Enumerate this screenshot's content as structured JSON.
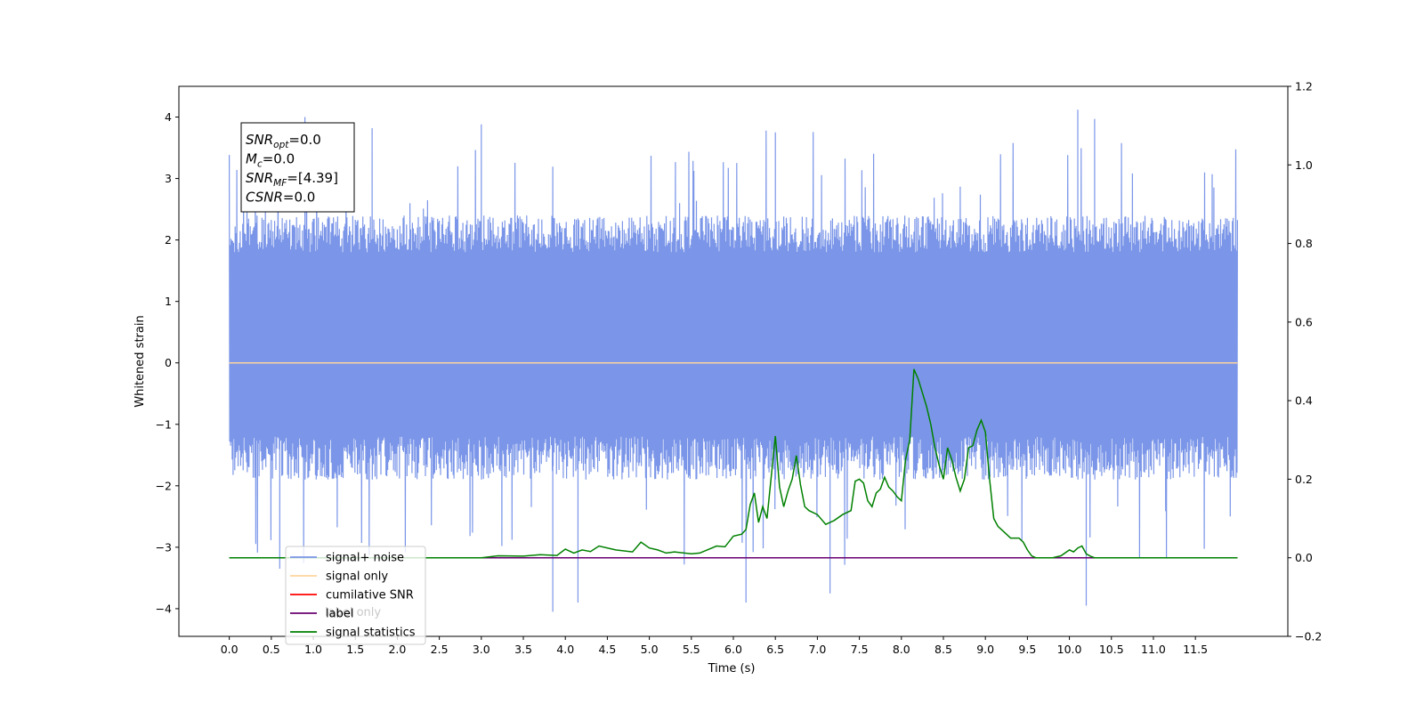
{
  "chart_data": {
    "type": "line",
    "xlabel": "Time (s)",
    "ylabel": "Whitened strain",
    "xlim": [
      -0.6,
      12.6
    ],
    "ylim": [
      -4.45,
      4.5
    ],
    "y2lim": [
      -0.2,
      1.2
    ],
    "x_ticks": [
      "0.0",
      "0.5",
      "1.0",
      "1.5",
      "2.0",
      "2.5",
      "3.0",
      "3.5",
      "4.0",
      "4.5",
      "5.0",
      "5.5",
      "6.0",
      "6.5",
      "7.0",
      "7.5",
      "8.0",
      "8.5",
      "9.0",
      "9.5",
      "10.0",
      "10.5",
      "11.0",
      "11.5"
    ],
    "y_ticks": [
      "4",
      "3",
      "2",
      "1",
      "0",
      "−1",
      "−2",
      "−3",
      "−4"
    ],
    "y2_ticks": [
      "1.2",
      "1.0",
      "0.8",
      "0.6",
      "0.4",
      "0.2",
      "0.0",
      "−0.2"
    ],
    "noise_envelope": {
      "x_range": [
        0.0,
        12.0
      ],
      "typical_max": 2.0,
      "typical_min": -1.9,
      "peak_max": [
        [
          0.9,
          4.0
        ],
        [
          10.1,
          4.12
        ],
        [
          10.3,
          3.97
        ],
        [
          3.0,
          3.88
        ],
        [
          1.7,
          3.82
        ],
        [
          6.5,
          3.75
        ]
      ],
      "peak_min": [
        [
          3.85,
          -4.05
        ],
        [
          4.15,
          -3.9
        ],
        [
          6.15,
          -3.9
        ],
        [
          7.15,
          -3.75
        ],
        [
          10.2,
          -3.95
        ],
        [
          0.6,
          -3.35
        ]
      ]
    },
    "series": [
      {
        "name": "signal+ noise",
        "color": "#7b96e8"
      },
      {
        "name": "signal only",
        "color": "#fdd49e",
        "x": [
          0.0,
          12.0
        ],
        "y": [
          0.0,
          0.0
        ]
      },
      {
        "name": "cumilative SNR",
        "color": "#ff0000"
      },
      {
        "name": "label",
        "color": "#6a0070",
        "axis": "right",
        "x": [
          0.0,
          12.0
        ],
        "y": [
          0.0,
          0.0
        ]
      },
      {
        "name": "signal statistics",
        "color": "#008000",
        "axis": "right",
        "x": [
          0.0,
          0.5,
          1.0,
          1.5,
          2.0,
          2.5,
          3.0,
          3.2,
          3.5,
          3.7,
          3.9,
          4.0,
          4.1,
          4.2,
          4.3,
          4.4,
          4.6,
          4.8,
          4.9,
          5.0,
          5.1,
          5.2,
          5.3,
          5.5,
          5.6,
          5.8,
          5.9,
          6.0,
          6.1,
          6.15,
          6.2,
          6.25,
          6.3,
          6.35,
          6.4,
          6.5,
          6.55,
          6.6,
          6.65,
          6.7,
          6.75,
          6.8,
          6.85,
          6.9,
          7.0,
          7.1,
          7.2,
          7.3,
          7.4,
          7.45,
          7.5,
          7.55,
          7.6,
          7.65,
          7.7,
          7.75,
          7.8,
          7.85,
          7.9,
          7.95,
          8.0,
          8.05,
          8.1,
          8.15,
          8.2,
          8.25,
          8.3,
          8.35,
          8.4,
          8.45,
          8.5,
          8.55,
          8.6,
          8.65,
          8.7,
          8.75,
          8.8,
          8.85,
          8.9,
          8.95,
          9.0,
          9.05,
          9.1,
          9.15,
          9.2,
          9.25,
          9.3,
          9.35,
          9.4,
          9.45,
          9.5,
          9.55,
          9.6,
          9.7,
          9.8,
          9.9,
          10.0,
          10.05,
          10.1,
          10.15,
          10.2,
          10.25,
          10.3,
          10.4,
          10.5,
          11.0,
          11.5,
          12.0
        ],
        "y": [
          0.0,
          0.0,
          0.0,
          0.0,
          0.0,
          0.0,
          0.0,
          0.005,
          0.004,
          0.008,
          0.006,
          0.022,
          0.012,
          0.02,
          0.016,
          0.03,
          0.02,
          0.015,
          0.04,
          0.025,
          0.02,
          0.012,
          0.015,
          0.01,
          0.012,
          0.03,
          0.028,
          0.055,
          0.06,
          0.072,
          0.135,
          0.165,
          0.09,
          0.13,
          0.1,
          0.31,
          0.18,
          0.13,
          0.17,
          0.2,
          0.26,
          0.185,
          0.13,
          0.12,
          0.11,
          0.085,
          0.095,
          0.11,
          0.12,
          0.195,
          0.2,
          0.19,
          0.145,
          0.13,
          0.165,
          0.175,
          0.205,
          0.18,
          0.17,
          0.155,
          0.145,
          0.25,
          0.3,
          0.48,
          0.455,
          0.42,
          0.385,
          0.34,
          0.28,
          0.235,
          0.2,
          0.28,
          0.25,
          0.205,
          0.17,
          0.2,
          0.28,
          0.285,
          0.325,
          0.35,
          0.32,
          0.2,
          0.1,
          0.08,
          0.07,
          0.06,
          0.05,
          0.05,
          0.05,
          0.04,
          0.02,
          0.005,
          0.0,
          0.0,
          0.0,
          0.005,
          0.02,
          0.015,
          0.025,
          0.03,
          0.01,
          0.004,
          0.0,
          0.0,
          0.0,
          0.0,
          0.0,
          0.0
        ]
      }
    ],
    "legend": {
      "placement": "lower-left",
      "overlap_text": "label only"
    },
    "annotation": {
      "lines": [
        {
          "name": "SNR",
          "sub": "opt",
          "value": "=0.0"
        },
        {
          "name": "M",
          "sub": "c",
          "value": "=0.0"
        },
        {
          "name": "SNR",
          "sub": "MF",
          "value": "=[4.39]"
        },
        {
          "name": "CSNR",
          "sub": "",
          "value": "=0.0"
        }
      ]
    }
  }
}
